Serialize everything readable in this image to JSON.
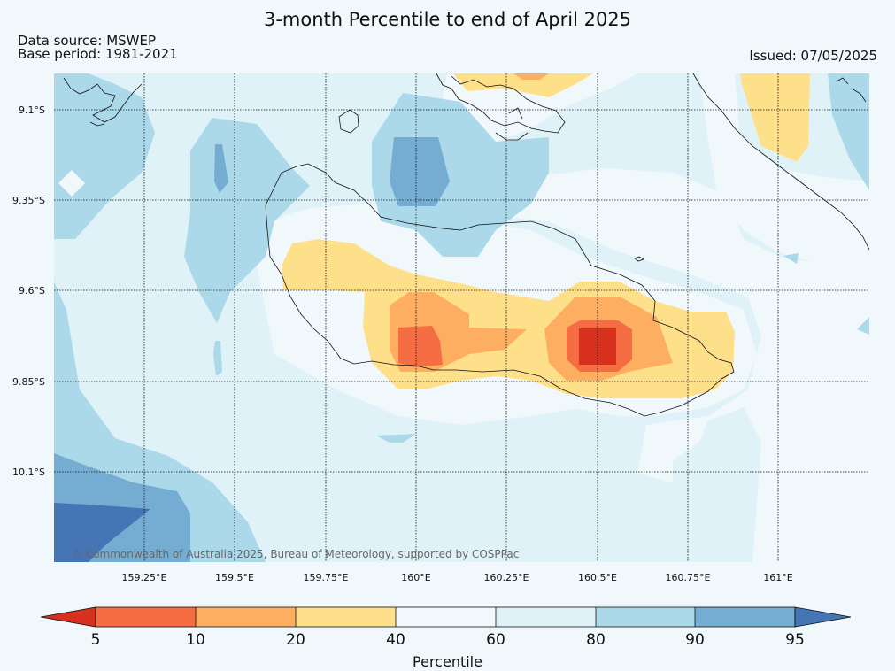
{
  "title": "3-month Percentile to end of April 2025",
  "source_line": "Data source: MSWEP",
  "base_line": "Base period: 1981-2021",
  "issued": "Issued: 07/05/2025",
  "credit": "© Commonwealth of Australia 2025, Bureau of Meteorology, supported by COSPPac",
  "lat_labels": [
    "9.1°S",
    "9.35°S",
    "9.6°S",
    "9.85°S",
    "10.1°S"
  ],
  "lon_labels": [
    "159.25°E",
    "159.5°E",
    "159.75°E",
    "160°E",
    "160.25°E",
    "160.5°E",
    "160.75°E",
    "161°E"
  ],
  "colorbar": {
    "label": "Percentile",
    "ticks": [
      "5",
      "10",
      "20",
      "40",
      "60",
      "80",
      "90",
      "95"
    ],
    "colors": [
      "#d7301f",
      "#f46d43",
      "#fdae61",
      "#fee08b",
      "#f1f8fb",
      "#dff2f8",
      "#abd9e9",
      "#74add1",
      "#4575b4"
    ]
  },
  "chart_data": {
    "type": "heatmap",
    "title": "3-month Percentile to end of April 2025",
    "variable": "Percentile",
    "levels": [
      5,
      10,
      20,
      40,
      60,
      80,
      90,
      95
    ],
    "extend": "both",
    "lat_range": [
      "10.35°S",
      "9.0°S"
    ],
    "lon_range": [
      "159E",
      "161.25E"
    ],
    "features": [
      {
        "region": "central Guadalcanal (160.5°E, 9.75°S)",
        "percentile": "<5"
      },
      {
        "region": "western Guadalcanal (160°E, 9.75°S)",
        "percentile": "5-10"
      },
      {
        "region": "southern Guadalcanal band",
        "percentile": "20-40"
      },
      {
        "region": "near 160°E, 9.2°S",
        "percentile": "90-95"
      },
      {
        "region": "southwest corner (159.1°E, 10.3°S)",
        "percentile": ">95"
      }
    ]
  }
}
